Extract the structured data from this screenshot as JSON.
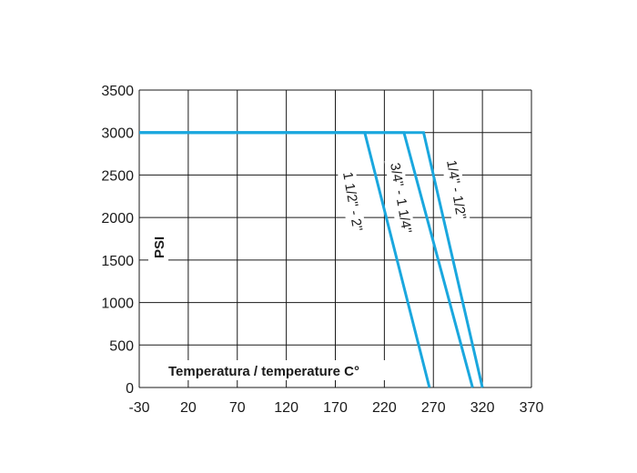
{
  "chart_data": {
    "type": "line",
    "xlabel": "Temperatura / temperature C°",
    "ylabel": "PSI",
    "xlim": [
      -30,
      370
    ],
    "ylim": [
      0,
      3500
    ],
    "x_ticks": [
      "-30",
      "20",
      "70",
      "120",
      "170",
      "220",
      "270",
      "320",
      "370"
    ],
    "y_ticks": [
      "0",
      "500",
      "1000",
      "1500",
      "2000",
      "2500",
      "3000",
      "3500"
    ],
    "grid": true,
    "line_color": "#1aa7de",
    "series": [
      {
        "name": "1 1/2\" - 2\"",
        "points": [
          [
            -30,
            3000
          ],
          [
            200,
            3000
          ],
          [
            266,
            0
          ]
        ]
      },
      {
        "name": "3/4\" - 1 1/4\"",
        "points": [
          [
            -30,
            3000
          ],
          [
            240,
            3000
          ],
          [
            310,
            0
          ]
        ]
      },
      {
        "name": "1/4\" - 1/2\"",
        "points": [
          [
            -30,
            3000
          ],
          [
            260,
            3000
          ],
          [
            320,
            0
          ]
        ]
      }
    ]
  }
}
